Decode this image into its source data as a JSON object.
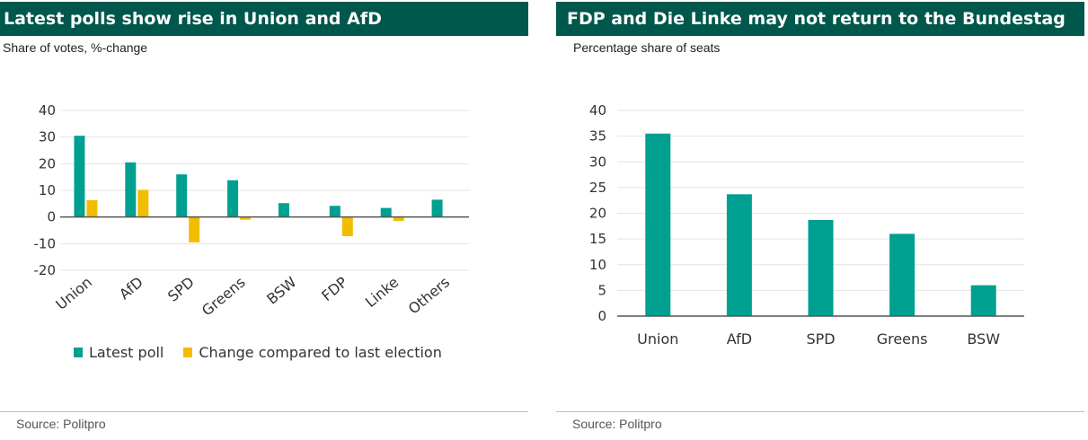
{
  "left_panel": {
    "title": "Latest polls show rise in Union and AfD",
    "subtitle": "Share of votes, %-change",
    "source": "Source: Politpro"
  },
  "right_panel": {
    "title": "FDP and Die Linke may not return to the Bundestag",
    "subtitle": "Percentage share of seats",
    "source": "Source: Politpro"
  },
  "colors": {
    "teal": "#00a091",
    "yellow": "#f2bd00",
    "header": "#00574b"
  },
  "chart_data": [
    {
      "type": "bar",
      "title": "Latest polls show rise in Union and AfD",
      "subtitle": "Share of votes, %-change",
      "categories": [
        "Union",
        "AfD",
        "SPD",
        "Greens",
        "BSW",
        "FDP",
        "Linke",
        "Others"
      ],
      "series": [
        {
          "name": "Latest poll",
          "color": "#00a091",
          "values": [
            30.5,
            20.5,
            16,
            13.8,
            5.2,
            4.2,
            3.4,
            6.5
          ]
        },
        {
          "name": "Change compared to last election",
          "color": "#f2bd00",
          "values": [
            6.3,
            10.2,
            -9.5,
            -1,
            0,
            -7.2,
            -1.5,
            0
          ]
        }
      ],
      "ylim": [
        -20,
        40
      ],
      "yticks": [
        40,
        30,
        20,
        10,
        0,
        -10,
        -20
      ],
      "grid": true,
      "legend_position": "bottom"
    },
    {
      "type": "bar",
      "title": "FDP and Die Linke may not return to the Bundestag",
      "subtitle": "Percentage share of seats",
      "categories": [
        "Union",
        "AfD",
        "SPD",
        "Greens",
        "BSW"
      ],
      "values": [
        35.5,
        23.7,
        18.7,
        16,
        6
      ],
      "color": "#00a091",
      "ylim": [
        0,
        40
      ],
      "yticks": [
        40,
        35,
        30,
        25,
        20,
        15,
        10,
        5,
        0
      ],
      "grid": true
    }
  ]
}
